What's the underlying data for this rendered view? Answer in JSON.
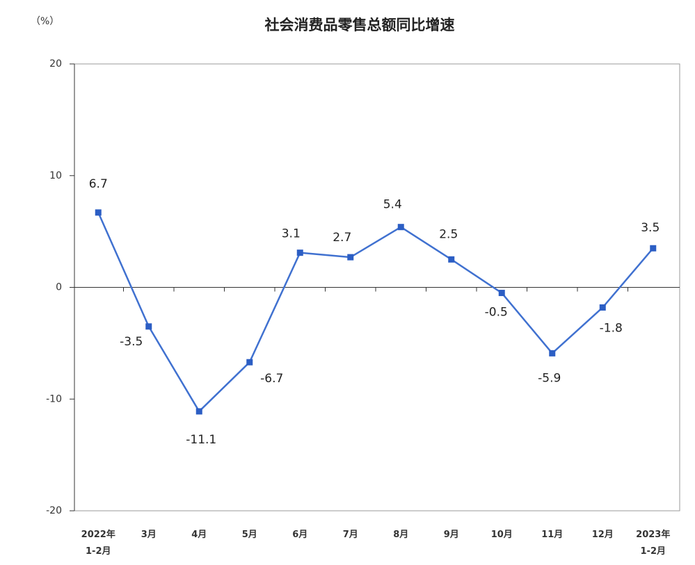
{
  "chart_data": {
    "type": "line",
    "title": "社会消费品零售总额同比增速",
    "ylabel": "（%）",
    "xlabel": "",
    "categories": [
      [
        "2022年",
        "1-2月"
      ],
      [
        "3月"
      ],
      [
        "4月"
      ],
      [
        "5月"
      ],
      [
        "6月"
      ],
      [
        "7月"
      ],
      [
        "8月"
      ],
      [
        "9月"
      ],
      [
        "10月"
      ],
      [
        "11月"
      ],
      [
        "12月"
      ],
      [
        "2023年",
        "1-2月"
      ]
    ],
    "values": [
      6.7,
      -3.5,
      -11.1,
      -6.7,
      3.1,
      2.7,
      5.4,
      2.5,
      -0.5,
      -5.9,
      -1.8,
      3.5
    ],
    "ylim": [
      -20,
      20
    ],
    "yticks": [
      20,
      10,
      0,
      -10,
      -20
    ],
    "grid": false,
    "legend": false,
    "data_labels": true,
    "colors": {
      "line": "#4071d0",
      "marker": "#2c5ec4",
      "frame": "#9a9a9a",
      "axis": "#333333"
    }
  }
}
